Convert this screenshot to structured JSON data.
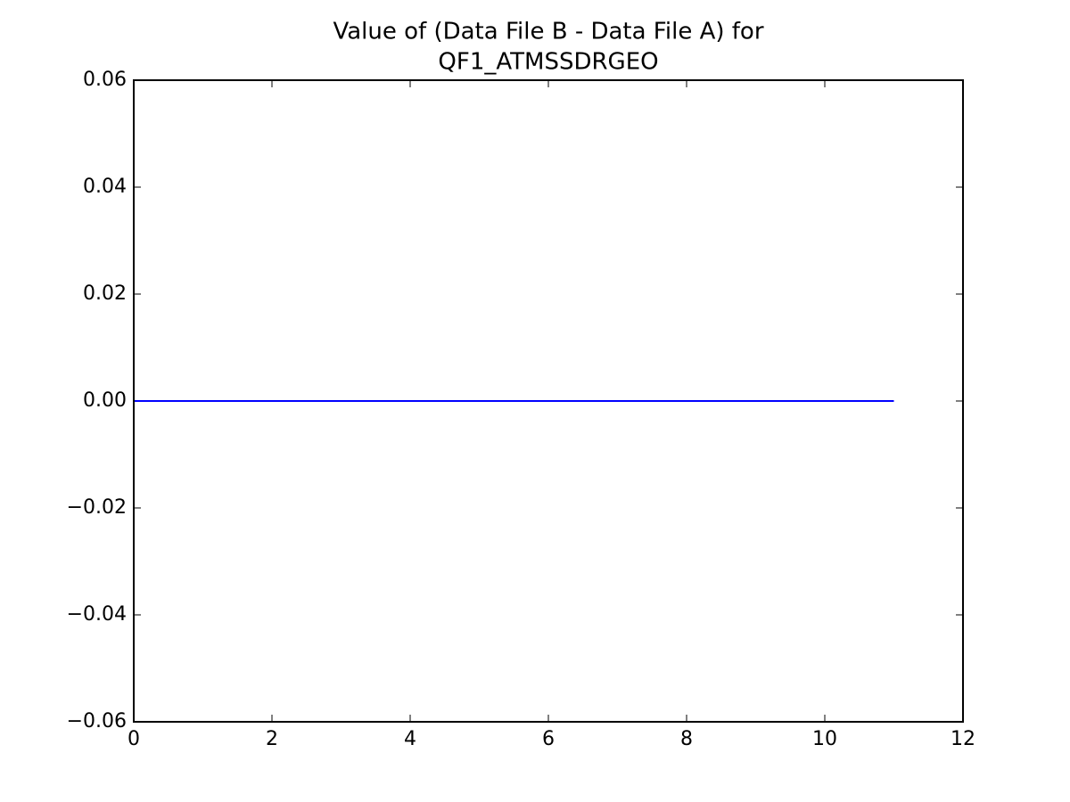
{
  "chart_data": {
    "type": "line",
    "title": [
      "Value of (Data File B - Data File A) for",
      "QF1_ATMSSDRGEO"
    ],
    "x": [
      0,
      1,
      2,
      3,
      4,
      5,
      6,
      7,
      8,
      9,
      10,
      11
    ],
    "series": [
      {
        "color": "#0000ff",
        "values": [
          0,
          0,
          0,
          0,
          0,
          0,
          0,
          0,
          0,
          0,
          0,
          0
        ]
      }
    ],
    "xlim": [
      0,
      12
    ],
    "xticks": [
      0,
      2,
      4,
      6,
      8,
      10,
      12
    ],
    "ylim": [
      -0.06,
      0.06
    ],
    "yticks": [
      {
        "value": -0.06,
        "label": "−0.06"
      },
      {
        "value": -0.04,
        "label": "−0.04"
      },
      {
        "value": -0.02,
        "label": "−0.02"
      },
      {
        "value": 0,
        "label": "0.00"
      },
      {
        "value": 0.02,
        "label": "0.02"
      },
      {
        "value": 0.04,
        "label": "0.04"
      },
      {
        "value": 0.06,
        "label": "0.06"
      }
    ],
    "grid": false
  }
}
